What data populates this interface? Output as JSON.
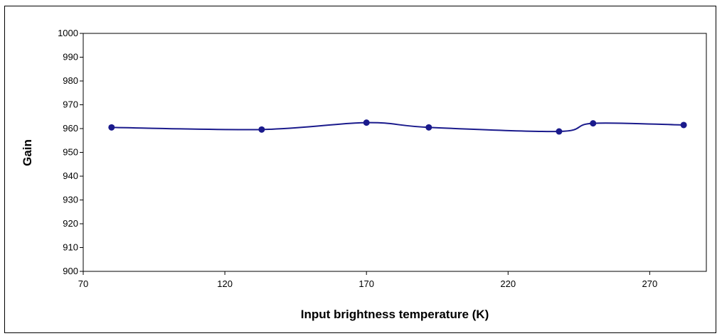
{
  "chart_data": {
    "type": "line",
    "xlabel": "Input brightness temperature (K)",
    "ylabel": "Gain",
    "xlim": [
      70,
      290
    ],
    "ylim": [
      900,
      1000
    ],
    "xticks": [
      70,
      120,
      170,
      220,
      270
    ],
    "yticks": [
      900,
      910,
      920,
      930,
      940,
      950,
      960,
      970,
      980,
      990,
      1000
    ],
    "grid": false,
    "legend": "none",
    "smooth": true,
    "series": [
      {
        "color": "#1a1a8c",
        "x": [
          80,
          133,
          170,
          192,
          238,
          250,
          282
        ],
        "y": [
          960.5,
          959.6,
          962.5,
          960.5,
          958.8,
          962.2,
          961.5
        ]
      }
    ]
  }
}
